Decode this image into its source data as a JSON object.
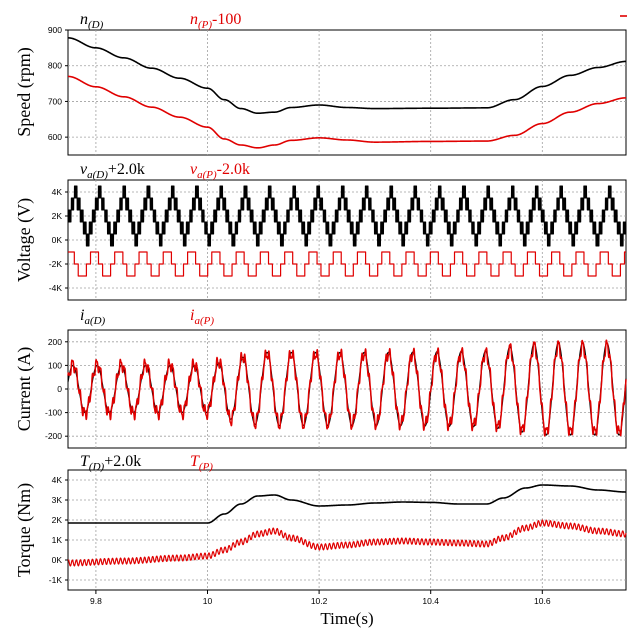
{
  "chart_data": [
    {
      "type": "line",
      "ylabel": "Speed (rpm)",
      "ylim": [
        550,
        900
      ],
      "yticks": [
        600,
        700,
        800,
        900
      ],
      "legend": [
        "n(D)",
        "n(P)-100"
      ],
      "grid": true,
      "series": [
        {
          "name": "n(D)",
          "color": "#000000",
          "x": [
            9.75,
            9.8,
            9.85,
            9.9,
            9.95,
            10.0,
            10.03,
            10.06,
            10.09,
            10.12,
            10.15,
            10.2,
            10.25,
            10.3,
            10.4,
            10.5,
            10.55,
            10.6,
            10.65,
            10.7,
            10.75
          ],
          "values": [
            878,
            850,
            822,
            793,
            765,
            737,
            705,
            680,
            667,
            670,
            683,
            690,
            683,
            680,
            681,
            682,
            705,
            742,
            773,
            795,
            812
          ]
        },
        {
          "name": "n(P)-100",
          "color": "#e00000",
          "x": [
            9.75,
            9.8,
            9.85,
            9.9,
            9.95,
            10.0,
            10.03,
            10.06,
            10.09,
            10.12,
            10.15,
            10.2,
            10.25,
            10.3,
            10.4,
            10.5,
            10.55,
            10.6,
            10.65,
            10.7,
            10.75
          ],
          "values": [
            770,
            741,
            713,
            684,
            656,
            628,
            595,
            578,
            570,
            578,
            591,
            598,
            592,
            586,
            588,
            589,
            605,
            638,
            670,
            694,
            710
          ]
        }
      ]
    },
    {
      "type": "line",
      "ylabel": "Voltage (V)",
      "ylim": [
        -5000,
        5000
      ],
      "yticks": [
        -4000,
        -2000,
        0,
        2000,
        4000
      ],
      "ytick_labels": [
        "-4K",
        "-2K",
        "0K",
        "2K",
        "4K"
      ],
      "legend": [
        "va(D)+2.0k",
        "va(P)-2.0k"
      ],
      "grid": true,
      "fundamental_period_s": 0.0435,
      "series": [
        {
          "name": "va(D)+2.0k",
          "color": "#000000",
          "offset": 2000,
          "step_levels": [
            0,
            1000,
            2000,
            1000,
            0,
            -1000,
            -2000,
            -1000
          ],
          "note": "staircase PWM voltage with high-frequency switching"
        },
        {
          "name": "va(P)-2.0k",
          "color": "#e00000",
          "offset": -2000,
          "step_levels": [
            1000,
            1000,
            0,
            -1000,
            -1000,
            0
          ],
          "note": "six-step square-wave voltage"
        }
      ]
    },
    {
      "type": "line",
      "ylabel": "Current (A)",
      "ylim": [
        -250,
        250
      ],
      "yticks": [
        -200,
        -100,
        0,
        100,
        200
      ],
      "legend": [
        "ia(D)",
        "ia(P)"
      ],
      "grid": true,
      "series": [
        {
          "name": "ia(D)",
          "color": "#000000",
          "period_s": 0.0435,
          "x": [
            9.75,
            10.0,
            10.05,
            10.1,
            10.3,
            10.5,
            10.55,
            10.6,
            10.75
          ],
          "amplitude": [
            100,
            100,
            130,
            155,
            155,
            160,
            180,
            195,
            195
          ]
        },
        {
          "name": "ia(P)",
          "color": "#e00000",
          "period_s": 0.0435,
          "x": [
            9.75,
            10.0,
            10.05,
            10.1,
            10.3,
            10.5,
            10.55,
            10.6,
            10.75
          ],
          "amplitude": [
            105,
            105,
            135,
            150,
            150,
            155,
            175,
            185,
            185
          ]
        }
      ]
    },
    {
      "type": "line",
      "ylabel": "Torque (Nm)",
      "ylim": [
        -1500,
        4500
      ],
      "yticks": [
        -1000,
        0,
        1000,
        2000,
        3000,
        4000
      ],
      "ytick_labels": [
        "-1K",
        "0K",
        "1K",
        "2K",
        "3K",
        "4K"
      ],
      "legend": [
        "T(D)+2.0k",
        "T(P)"
      ],
      "grid": true,
      "xlabel": "Time(s)",
      "xlim": [
        9.75,
        10.75
      ],
      "xticks": [
        9.8,
        10.0,
        10.2,
        10.4,
        10.6
      ],
      "xtick_labels": [
        "9.8",
        "10",
        "10.2",
        "10.4",
        "10.6"
      ],
      "series": [
        {
          "name": "T(D)+2.0k",
          "color": "#000000",
          "x": [
            9.75,
            10.0,
            10.03,
            10.06,
            10.09,
            10.12,
            10.15,
            10.2,
            10.25,
            10.3,
            10.35,
            10.4,
            10.45,
            10.5,
            10.53,
            10.57,
            10.6,
            10.65,
            10.7,
            10.75
          ],
          "values": [
            1850,
            1850,
            2300,
            2800,
            3200,
            3250,
            3000,
            2700,
            2750,
            2850,
            2900,
            2880,
            2800,
            2800,
            3100,
            3600,
            3750,
            3700,
            3500,
            3400
          ]
        },
        {
          "name": "T(P)",
          "color": "#e00000",
          "ripple_amplitude": 150,
          "x": [
            9.75,
            9.85,
            9.95,
            10.0,
            10.03,
            10.06,
            10.09,
            10.12,
            10.15,
            10.2,
            10.25,
            10.3,
            10.35,
            10.4,
            10.45,
            10.5,
            10.53,
            10.57,
            10.6,
            10.65,
            10.7,
            10.75
          ],
          "values": [
            -150,
            -50,
            100,
            200,
            500,
            900,
            1300,
            1450,
            1100,
            650,
            750,
            900,
            950,
            900,
            850,
            800,
            1100,
            1600,
            1850,
            1700,
            1450,
            1300
          ]
        }
      ]
    }
  ],
  "labels": {
    "speed_ylabel": "Speed (rpm)",
    "voltage_ylabel": "Voltage  (V)",
    "current_ylabel": "Current (A)",
    "torque_ylabel": "Torque (Nm)",
    "xlabel": "Time(s)",
    "leg_n_d_main": "n",
    "leg_n_d_sub": "(D)",
    "leg_n_p_main": "n",
    "leg_n_p_sub": "(P)",
    "leg_n_p_suffix": "-100",
    "leg_v_d_main": "v",
    "leg_v_d_sub": "a(D)",
    "leg_v_d_suffix": "+2.0k",
    "leg_v_p_main": "v",
    "leg_v_p_sub": "a(P)",
    "leg_v_p_suffix": "-2.0k",
    "leg_i_d_main": "i",
    "leg_i_d_sub": "a(D)",
    "leg_i_p_main": "i",
    "leg_i_p_sub": "a(P)",
    "leg_t_d_main": "T",
    "leg_t_d_sub": "(D)",
    "leg_t_d_suffix": "+2.0k",
    "leg_t_p_main": "T",
    "leg_t_p_sub": "(P)"
  }
}
